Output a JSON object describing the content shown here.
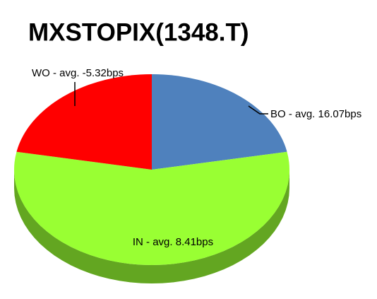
{
  "chart_data": {
    "type": "pie",
    "title": "MXSTOPIX(1348.T)",
    "categories": [
      "BO - avg. 16.07bps",
      "IN - avg. 8.41bps",
      "WO - avg. -5.32bps"
    ],
    "values": [
      22,
      56,
      22
    ],
    "colors": [
      "#4f81bd",
      "#99ff33",
      "#ff0000"
    ]
  }
}
